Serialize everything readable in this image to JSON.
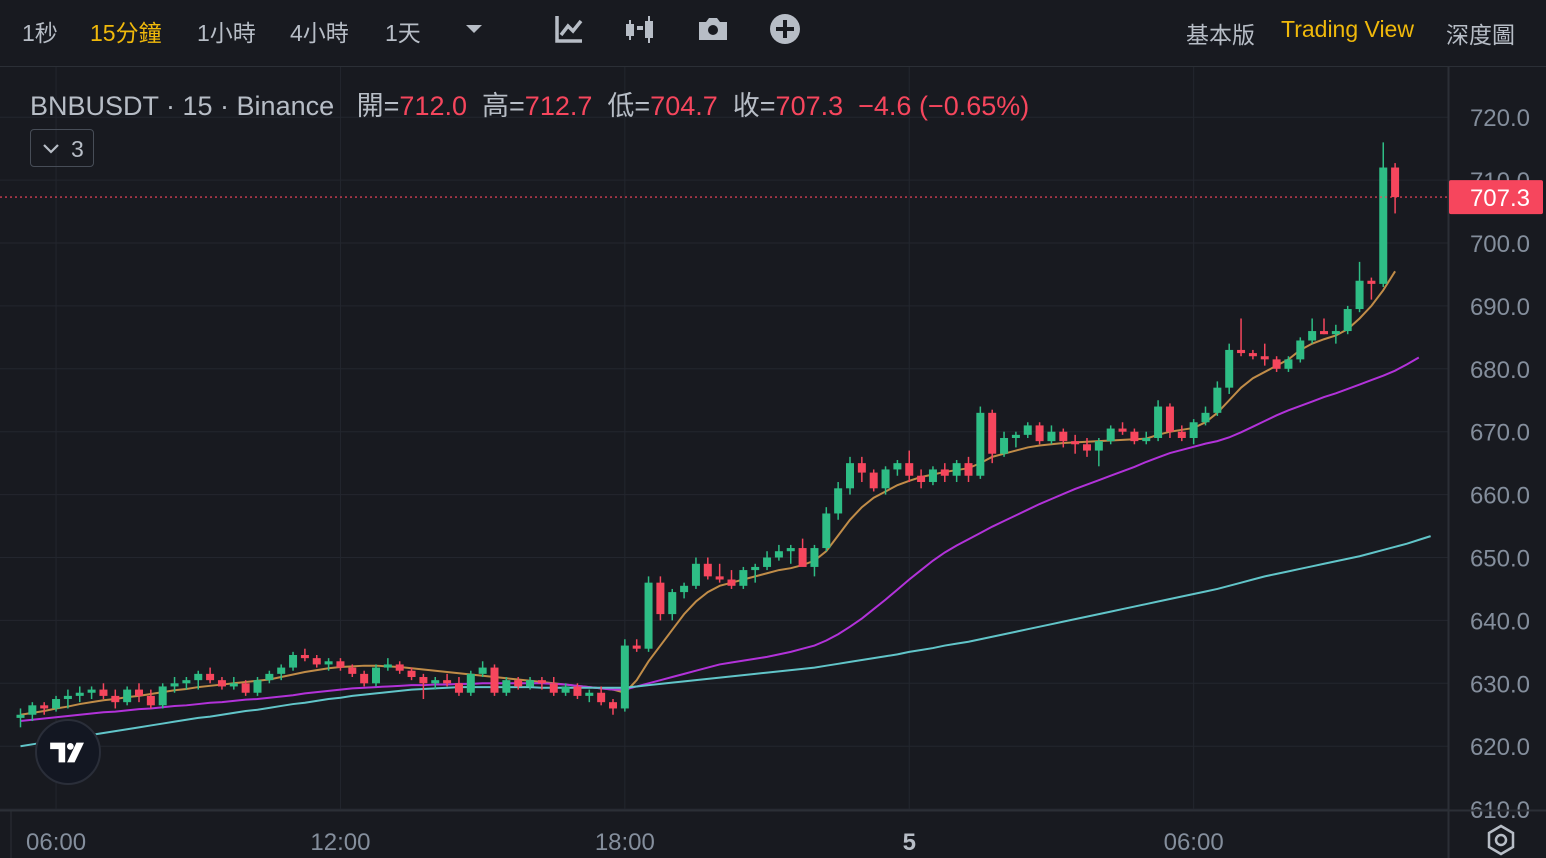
{
  "toolbar": {
    "intervals": [
      {
        "label": "1秒",
        "active": false
      },
      {
        "label": "15分鐘",
        "active": true
      },
      {
        "label": "1小時",
        "active": false
      },
      {
        "label": "4小時",
        "active": false
      },
      {
        "label": "1天",
        "active": false
      }
    ],
    "icons": [
      "chevron-down-icon",
      "indicators-icon",
      "candle-type-icon",
      "camera-icon",
      "add-icon"
    ],
    "views": [
      {
        "label": "基本版",
        "active": false
      },
      {
        "label": "Trading View",
        "active": true
      },
      {
        "label": "深度圖",
        "active": false
      }
    ]
  },
  "legend": {
    "symbol": "BNBUSDT · 15 · Binance",
    "open_label": "開=",
    "open": "712.0",
    "high_label": "高=",
    "high": "712.7",
    "low_label": "低=",
    "low": "704.7",
    "close_label": "收=",
    "close": "707.3",
    "change": "−4.6 (−0.65%)"
  },
  "indicator_button": {
    "count": "3"
  },
  "colors": {
    "up": "#2ebd85",
    "down": "#f6465d",
    "ma_short": "#c08c48",
    "ma_mid": "#b232d9",
    "ma_long": "#61c5c9",
    "grid": "#23262e",
    "text": "#848e9c",
    "price_tag": "#f6465d"
  },
  "chart_data": {
    "type": "candlestick",
    "symbol": "BNBUSDT",
    "interval": "15",
    "exchange": "Binance",
    "y_axis": {
      "ticks": [
        "720.0",
        "710.0",
        "700.0",
        "690.0",
        "680.0",
        "670.0",
        "660.0",
        "650.0",
        "640.0",
        "630.0",
        "620.0",
        "610.0"
      ],
      "range": [
        609,
        722
      ]
    },
    "x_axis": {
      "ticks": [
        {
          "label": "06:00",
          "index": 3
        },
        {
          "label": "12:00",
          "index": 27
        },
        {
          "label": "18:00",
          "index": 51
        },
        {
          "label": "5",
          "index": 75
        },
        {
          "label": "06:00",
          "index": 99
        }
      ]
    },
    "last_price": "707.3",
    "candles": [
      [
        624.5,
        626,
        623,
        625
      ],
      [
        625,
        627,
        624,
        626.5
      ],
      [
        626.5,
        627,
        625,
        626
      ],
      [
        626,
        628,
        625.5,
        627.5
      ],
      [
        627.5,
        629,
        626,
        628
      ],
      [
        628,
        629.5,
        627,
        628.5
      ],
      [
        628.5,
        629.5,
        627.5,
        629
      ],
      [
        629,
        630,
        627.5,
        628
      ],
      [
        628,
        629,
        626,
        627
      ],
      [
        627,
        629.5,
        626.5,
        629
      ],
      [
        629,
        630,
        627,
        628
      ],
      [
        628,
        629,
        626,
        626.5
      ],
      [
        626.5,
        630,
        626,
        629.5
      ],
      [
        629.5,
        631,
        628.5,
        630
      ],
      [
        630,
        631,
        629,
        630.5
      ],
      [
        630.5,
        632,
        629,
        631.5
      ],
      [
        631.5,
        632.5,
        630,
        630.5
      ],
      [
        630.5,
        631,
        629,
        629.5
      ],
      [
        629.5,
        631,
        629,
        630
      ],
      [
        630,
        630.5,
        628,
        628.5
      ],
      [
        628.5,
        631,
        628,
        630.5
      ],
      [
        630.5,
        632,
        630,
        631.5
      ],
      [
        631.5,
        633,
        630.5,
        632.5
      ],
      [
        632.5,
        635,
        632,
        634.5
      ],
      [
        634.5,
        635.5,
        633.5,
        634
      ],
      [
        634,
        634.5,
        632.5,
        633
      ],
      [
        633,
        634,
        632,
        633.5
      ],
      [
        633.5,
        634,
        632,
        632.5
      ],
      [
        632.5,
        633,
        631,
        631.5
      ],
      [
        631.5,
        632,
        629.5,
        630
      ],
      [
        630,
        633,
        629.5,
        632.5
      ],
      [
        632.5,
        634,
        632,
        633
      ],
      [
        633,
        633.5,
        631.5,
        632
      ],
      [
        632,
        632.5,
        630.5,
        631
      ],
      [
        631,
        631.5,
        627.5,
        630
      ],
      [
        630,
        631,
        629,
        630.5
      ],
      [
        630.5,
        631.5,
        629.5,
        630
      ],
      [
        630,
        631,
        628,
        628.5
      ],
      [
        628.5,
        632,
        628,
        631.5
      ],
      [
        631.5,
        633.5,
        631,
        632.5
      ],
      [
        632.5,
        633,
        628,
        628.5
      ],
      [
        628.5,
        631,
        628,
        630.5
      ],
      [
        630.5,
        631,
        629,
        629.5
      ],
      [
        629.5,
        631,
        629,
        630.5
      ],
      [
        630.5,
        631,
        629,
        630
      ],
      [
        630,
        631,
        628,
        628.5
      ],
      [
        628.5,
        630,
        628,
        629.5
      ],
      [
        629.5,
        630,
        627.5,
        628
      ],
      [
        628,
        629,
        627,
        628.5
      ],
      [
        628.5,
        629.5,
        626.5,
        627
      ],
      [
        627,
        627.5,
        625,
        626
      ],
      [
        626,
        637,
        625.5,
        636
      ],
      [
        636,
        637,
        635,
        635.5
      ],
      [
        635.5,
        647,
        635,
        646
      ],
      [
        646,
        647,
        640,
        641
      ],
      [
        641,
        645,
        640,
        644.5
      ],
      [
        644.5,
        646,
        643.5,
        645.5
      ],
      [
        645.5,
        650,
        645,
        649
      ],
      [
        649,
        650,
        646.5,
        647
      ],
      [
        647,
        649,
        646,
        646.5
      ],
      [
        646.5,
        648,
        645,
        645.5
      ],
      [
        645.5,
        648.5,
        645,
        648
      ],
      [
        648,
        649,
        646,
        648.5
      ],
      [
        648.5,
        651,
        648,
        650
      ],
      [
        650,
        652,
        649.5,
        651
      ],
      [
        651,
        652,
        649,
        651.5
      ],
      [
        651.5,
        653,
        649.5,
        648.5
      ],
      [
        648.5,
        652,
        647,
        651.5
      ],
      [
        651.5,
        658,
        651,
        657
      ],
      [
        657,
        662,
        656,
        661
      ],
      [
        661,
        666,
        660,
        665
      ],
      [
        665,
        666,
        662,
        663.5
      ],
      [
        663.5,
        664,
        660.5,
        661
      ],
      [
        661,
        664.5,
        660,
        664
      ],
      [
        664,
        665.5,
        663,
        665
      ],
      [
        665,
        667,
        662,
        663
      ],
      [
        663,
        664,
        661,
        662
      ],
      [
        662,
        664.5,
        661.5,
        664
      ],
      [
        664,
        665,
        662,
        663
      ],
      [
        663,
        665.5,
        662,
        665
      ],
      [
        665,
        666,
        662,
        663
      ],
      [
        663,
        674,
        662.5,
        673
      ],
      [
        673,
        673.5,
        665,
        666.5
      ],
      [
        666.5,
        670,
        666,
        669
      ],
      [
        669,
        670,
        667.5,
        669.5
      ],
      [
        669.5,
        671.5,
        669,
        671
      ],
      [
        671,
        671.5,
        668,
        668.5
      ],
      [
        668.5,
        671,
        668,
        670
      ],
      [
        670,
        670.5,
        667.5,
        668.5
      ],
      [
        668.5,
        669.5,
        666.5,
        668
      ],
      [
        668,
        669,
        666,
        667
      ],
      [
        667,
        669,
        664.5,
        668.5
      ],
      [
        668.5,
        671,
        668,
        670.5
      ],
      [
        670.5,
        671.5,
        669.5,
        670
      ],
      [
        670,
        670.5,
        668,
        668.5
      ],
      [
        668.5,
        670,
        668,
        669
      ],
      [
        669,
        675,
        668.5,
        674
      ],
      [
        674,
        674.5,
        669,
        670
      ],
      [
        670,
        671,
        668.5,
        669
      ],
      [
        669,
        672,
        668,
        671.5
      ],
      [
        671.5,
        674,
        671,
        673
      ],
      [
        673,
        678,
        672.5,
        677
      ],
      [
        677,
        684,
        676,
        683
      ],
      [
        683,
        688,
        682,
        682.5
      ],
      [
        682.5,
        683,
        681.5,
        682
      ],
      [
        682,
        684,
        680.5,
        681.5
      ],
      [
        681.5,
        682,
        679.5,
        680
      ],
      [
        680,
        682,
        679.5,
        681.5
      ],
      [
        681.5,
        685,
        681,
        684.5
      ],
      [
        684.5,
        688,
        684,
        686
      ],
      [
        686,
        688,
        685.5,
        685.5
      ],
      [
        685.5,
        687,
        684,
        686
      ],
      [
        686,
        690,
        685.5,
        689.5
      ],
      [
        689.5,
        697,
        689,
        694
      ],
      [
        694,
        694.5,
        691,
        693.5
      ],
      [
        693.5,
        716,
        693,
        712
      ],
      [
        712,
        712.7,
        704.7,
        707.3
      ]
    ],
    "series": [
      {
        "type": "ma",
        "color": "#c08c48",
        "values": [
          625,
          625.3,
          625.6,
          626,
          626.3,
          626.7,
          627,
          627.3,
          627.5,
          627.8,
          628,
          628.3,
          628.6,
          628.9,
          629.1,
          629.4,
          629.6,
          629.8,
          630,
          630.2,
          630.4,
          630.6,
          631,
          631.4,
          631.8,
          632.1,
          632.4,
          632.6,
          632.7,
          632.8,
          632.8,
          632.7,
          632.6,
          632.4,
          632.2,
          632,
          631.8,
          631.6,
          631.4,
          631.2,
          631,
          630.8,
          630.6,
          630.4,
          630.2,
          630,
          629.8,
          629.6,
          629.4,
          629.2,
          629,
          628.5,
          630.5,
          633.5,
          636,
          638.5,
          641,
          643,
          644.5,
          645.5,
          646,
          646.5,
          647,
          647.5,
          648,
          648.3,
          648.8,
          649.5,
          651,
          653.5,
          656,
          658,
          659.5,
          660.5,
          661.5,
          662.2,
          662.8,
          663.2,
          663.6,
          663.9,
          664.2,
          665,
          666,
          666.5,
          667,
          667.5,
          667.8,
          668,
          668.2,
          668.3,
          668.4,
          668.5,
          668.6,
          668.7,
          668.8,
          668.9,
          669.5,
          670,
          670.3,
          670.6,
          671.5,
          673,
          675,
          677,
          678.5,
          679.5,
          680.5,
          681.5,
          683,
          684,
          684.7,
          685.3,
          686.3,
          688,
          690,
          692.5,
          695.5
        ]
      },
      {
        "type": "ma",
        "color": "#b232d9",
        "values": [
          624,
          624.2,
          624.4,
          624.6,
          624.8,
          625,
          625.2,
          625.4,
          625.5,
          625.7,
          625.9,
          626,
          626.2,
          626.4,
          626.5,
          626.7,
          626.9,
          627,
          627.2,
          627.4,
          627.5,
          627.7,
          627.9,
          628.1,
          628.4,
          628.6,
          628.8,
          629,
          629.2,
          629.3,
          629.4,
          629.5,
          629.6,
          629.7,
          629.7,
          629.8,
          629.8,
          629.9,
          629.9,
          630,
          630,
          630,
          630,
          630,
          630,
          629.9,
          629.8,
          629.6,
          629.4,
          629.2,
          629,
          629,
          629.5,
          630,
          630.5,
          631,
          631.5,
          632,
          632.5,
          633,
          633.3,
          633.6,
          633.9,
          634.2,
          634.6,
          635,
          635.5,
          636,
          636.8,
          637.8,
          639,
          640.3,
          641.8,
          643.3,
          644.9,
          646.5,
          648,
          649.5,
          650.8,
          651.9,
          652.9,
          653.9,
          654.9,
          655.8,
          656.7,
          657.6,
          658.5,
          659.3,
          660.1,
          660.9,
          661.6,
          662.3,
          663,
          663.7,
          664.4,
          665.2,
          665.9,
          666.6,
          667.1,
          667.6,
          668.1,
          668.5,
          669.1,
          669.9,
          670.8,
          671.7,
          672.6,
          673.4,
          674.1,
          674.8,
          675.5,
          676.1,
          676.8,
          677.5,
          678.2,
          678.9,
          679.7,
          680.7,
          681.8
        ]
      },
      {
        "type": "ma",
        "color": "#61c5c9",
        "values": [
          620,
          620.3,
          620.6,
          620.9,
          621.2,
          621.5,
          621.8,
          622.1,
          622.4,
          622.7,
          623,
          623.3,
          623.6,
          623.9,
          624.2,
          624.5,
          624.7,
          625,
          625.3,
          625.6,
          625.8,
          626.1,
          626.4,
          626.7,
          626.9,
          627.2,
          627.5,
          627.7,
          628,
          628.2,
          628.4,
          628.6,
          628.8,
          629,
          629.1,
          629.2,
          629.3,
          629.4,
          629.4,
          629.4,
          629.4,
          629.4,
          629.4,
          629.4,
          629.3,
          629.3,
          629.3,
          629.3,
          629.3,
          629.3,
          629.3,
          629.3,
          629.5,
          629.7,
          629.9,
          630.1,
          630.3,
          630.5,
          630.7,
          630.9,
          631.1,
          631.3,
          631.5,
          631.7,
          631.9,
          632.1,
          632.3,
          632.5,
          632.8,
          633.1,
          633.4,
          633.7,
          634,
          634.3,
          634.6,
          635,
          635.3,
          635.6,
          636,
          636.3,
          636.6,
          637,
          637.4,
          637.8,
          638.2,
          638.6,
          639,
          639.4,
          639.8,
          640.2,
          640.6,
          641,
          641.4,
          641.8,
          642.2,
          642.6,
          643,
          643.4,
          643.8,
          644.2,
          644.6,
          645,
          645.5,
          646,
          646.5,
          647,
          647.4,
          647.8,
          648.2,
          648.6,
          649,
          649.4,
          649.8,
          650.2,
          650.7,
          651.2,
          651.7,
          652.2,
          652.8,
          653.4
        ]
      }
    ]
  }
}
